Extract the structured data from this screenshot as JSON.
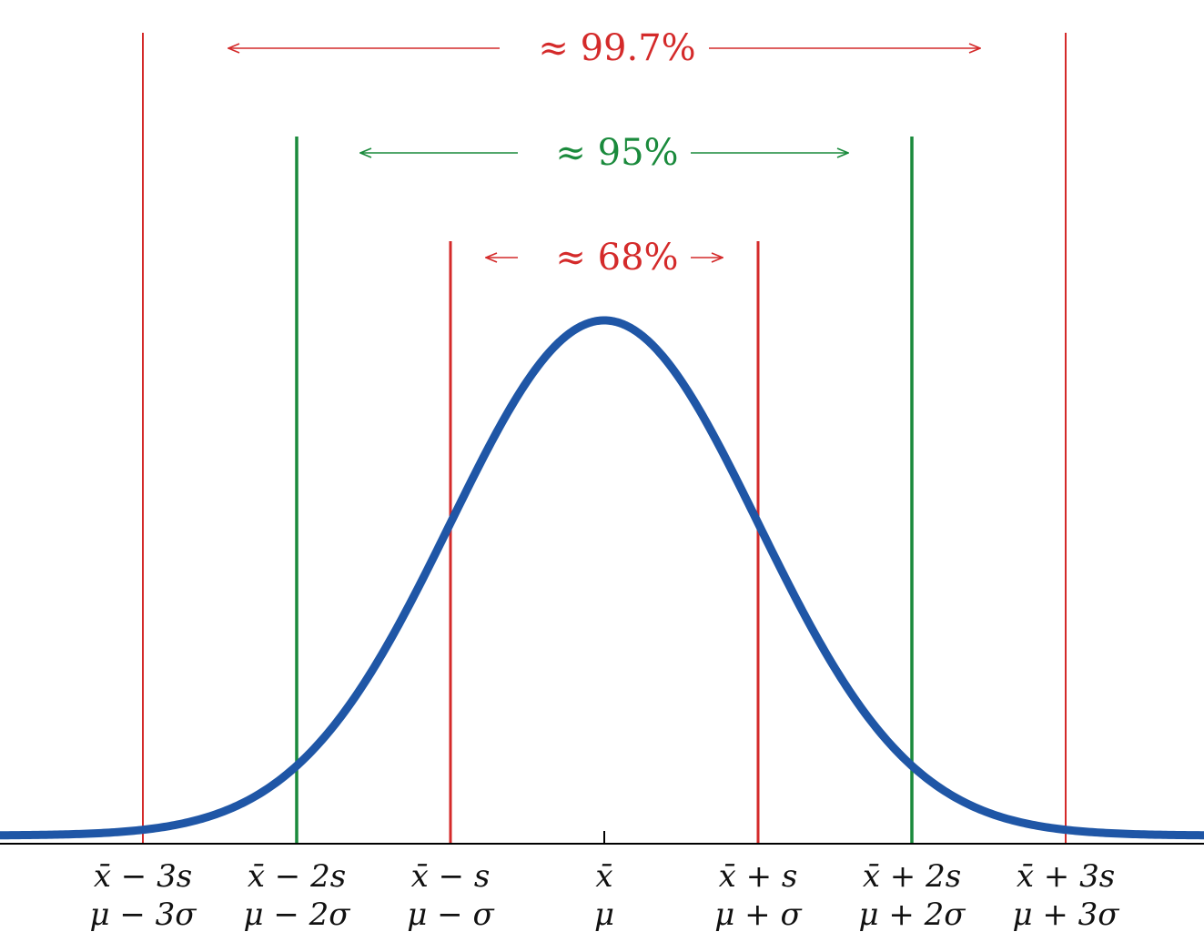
{
  "colors": {
    "curve": "#1f56a6",
    "red": "#d42a2a",
    "green": "#1a8a3c",
    "axis": "#000000"
  },
  "intervals": [
    {
      "label": "≈ 68%",
      "color": "red",
      "k": 1
    },
    {
      "label": "≈ 95%",
      "color": "green",
      "k": 2
    },
    {
      "label": "≈ 99.7%",
      "color": "red",
      "k": 3
    }
  ],
  "ticks": [
    {
      "k": -3,
      "line1": "x̄ − 3s",
      "line2": "μ − 3σ"
    },
    {
      "k": -2,
      "line1": "x̄ − 2s",
      "line2": "μ − 2σ"
    },
    {
      "k": -1,
      "line1": "x̄ − s",
      "line2": "μ − σ"
    },
    {
      "k": 0,
      "line1": "x̄",
      "line2": "μ"
    },
    {
      "k": 1,
      "line1": "x̄ + s",
      "line2": "μ + σ"
    },
    {
      "k": 2,
      "line1": "x̄ + 2s",
      "line2": "μ + 2σ"
    },
    {
      "k": 3,
      "line1": "x̄ + 3s",
      "line2": "μ + 3σ"
    }
  ]
}
